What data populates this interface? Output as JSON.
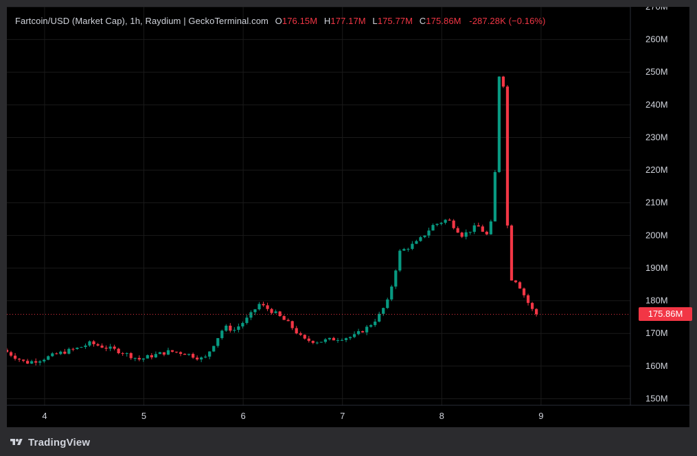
{
  "legend": {
    "title": "Fartcoin/USD (Market Cap), 1h, Raydium | GeckoTerminal.com",
    "o_key": "O",
    "o_val": "176.15M",
    "h_key": "H",
    "h_val": "177.17M",
    "l_key": "L",
    "l_val": "175.77M",
    "c_key": "C",
    "c_val": "175.86M",
    "change": "-287.28K (−0.16%)"
  },
  "price_tag": "175.86M",
  "branding": {
    "name": "TradingView",
    "logo_icon": "tradingview-logo-icon"
  },
  "colors": {
    "up": "#089981",
    "down": "#f23645",
    "background": "#000000",
    "axis_text": "#d1d4dc",
    "grid": "#1a1a1a"
  },
  "chart_data": {
    "type": "candlestick",
    "title": "Fartcoin/USD (Market Cap), 1h, Raydium | GeckoTerminal.com",
    "x_ticks": [
      "4",
      "5",
      "6",
      "7",
      "8",
      "9"
    ],
    "y_ticks": [
      "150M",
      "160M",
      "170M",
      "180M",
      "190M",
      "200M",
      "210M",
      "220M",
      "230M",
      "240M",
      "250M",
      "260M",
      "270M"
    ],
    "ylim": [
      148,
      270
    ],
    "xlim": [
      3.62,
      9.9
    ],
    "y_unit": "M",
    "last_price": 175.86,
    "last_price_line": "dotted",
    "grid": true,
    "path_points": [
      [
        3.62,
        165.0
      ],
      [
        3.85,
        161.0
      ],
      [
        4.0,
        162.0
      ],
      [
        4.2,
        164.0
      ],
      [
        4.38,
        165.5
      ],
      [
        4.5,
        167.0
      ],
      [
        4.8,
        164.5
      ],
      [
        5.0,
        162.0
      ],
      [
        5.1,
        163.0
      ],
      [
        5.3,
        164.5
      ],
      [
        5.45,
        164.0
      ],
      [
        5.65,
        162.0
      ],
      [
        5.85,
        172.0
      ],
      [
        5.95,
        171.0
      ],
      [
        6.1,
        175.0
      ],
      [
        6.2,
        179.0
      ],
      [
        6.35,
        176.5
      ],
      [
        6.5,
        173.0
      ],
      [
        6.65,
        168.0
      ],
      [
        6.8,
        167.5
      ],
      [
        7.0,
        168.5
      ],
      [
        7.15,
        169.0
      ],
      [
        7.3,
        172.0
      ],
      [
        7.4,
        175.0
      ],
      [
        7.5,
        180.0
      ],
      [
        7.62,
        195.0
      ],
      [
        7.8,
        198.0
      ],
      [
        7.95,
        203.0
      ],
      [
        8.1,
        205.0
      ],
      [
        8.25,
        200.0
      ],
      [
        8.4,
        203.0
      ],
      [
        8.5,
        200.0
      ],
      [
        8.55,
        205.0
      ],
      [
        8.58,
        220.0
      ],
      [
        8.62,
        249.0
      ],
      [
        8.66,
        248.0
      ],
      [
        8.7,
        205.0
      ],
      [
        8.73,
        187.0
      ],
      [
        8.8,
        186.0
      ],
      [
        8.9,
        180.0
      ],
      [
        8.98,
        175.86
      ]
    ]
  }
}
